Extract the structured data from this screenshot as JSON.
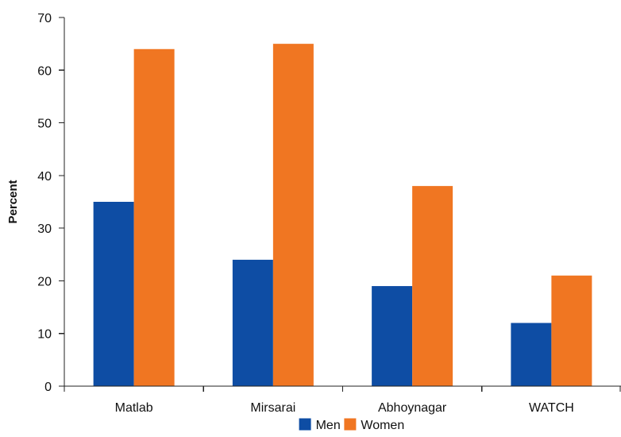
{
  "chart_data": {
    "type": "bar",
    "title": "",
    "xlabel": "",
    "ylabel": "Percent",
    "ylim": [
      0,
      70
    ],
    "yticks": [
      0,
      10,
      20,
      30,
      40,
      50,
      60,
      70
    ],
    "categories": [
      "Matlab",
      "Mirsarai",
      "Abhoynagar",
      "WATCH"
    ],
    "series": [
      {
        "name": "Men",
        "color": "#0e4da4",
        "values": [
          35,
          24,
          19,
          12
        ]
      },
      {
        "name": "Women",
        "color": "#f07622",
        "values": [
          64,
          65,
          38,
          21
        ]
      }
    ],
    "legend_position": "bottom",
    "grid": false
  }
}
